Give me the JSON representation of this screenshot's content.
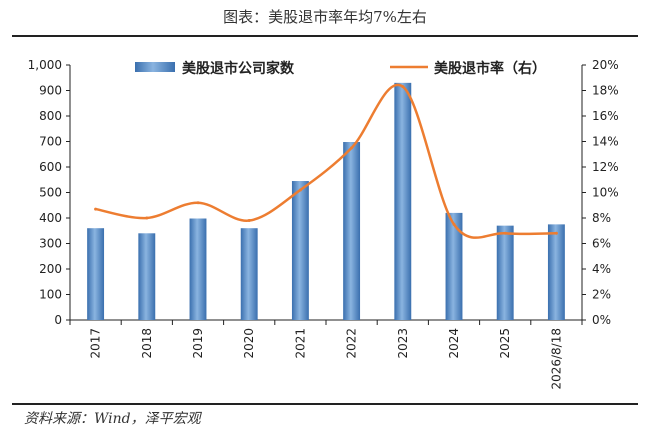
{
  "title": "图表：美股退市率年均7%左右",
  "source": "资料来源：Wind，泽平宏观",
  "chart_data": {
    "type": "bar",
    "categories": [
      "2017",
      "2018",
      "2019",
      "2020",
      "2021",
      "2022",
      "2023",
      "2024",
      "2025",
      "2026/8/18"
    ],
    "series": [
      {
        "name": "美股退市公司家数",
        "type": "bar",
        "axis": "left",
        "color": "#4f86c6",
        "values": [
          360,
          340,
          398,
          360,
          545,
          698,
          930,
          420,
          370,
          375
        ]
      },
      {
        "name": "美股退市率（右）",
        "type": "line",
        "axis": "right",
        "color": "#ed7d31",
        "values": [
          8.7,
          8.0,
          9.2,
          7.8,
          10.2,
          13.5,
          18.3,
          7.5,
          6.8,
          6.8
        ]
      }
    ],
    "y_left": {
      "ylim": [
        0,
        1000
      ],
      "ticks": [
        "0",
        "100",
        "200",
        "300",
        "400",
        "500",
        "600",
        "700",
        "800",
        "900",
        "1,000"
      ]
    },
    "y_right": {
      "ylim": [
        0,
        20
      ],
      "unit": "%",
      "ticks": [
        "0%",
        "2%",
        "4%",
        "6%",
        "8%",
        "10%",
        "12%",
        "14%",
        "16%",
        "18%",
        "20%"
      ]
    },
    "legend_position": "top",
    "grid": false
  }
}
